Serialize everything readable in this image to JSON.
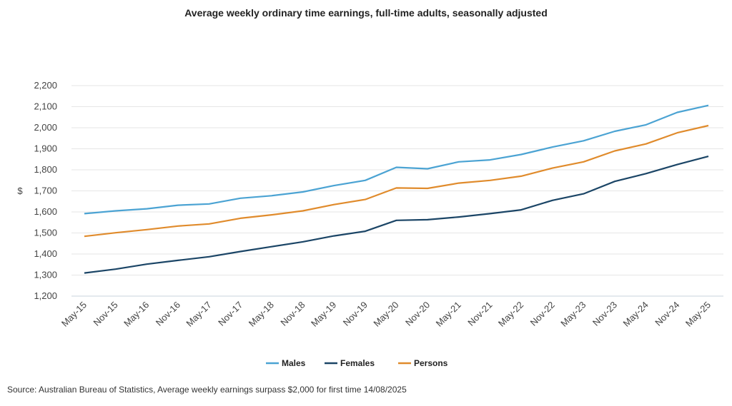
{
  "chart_data": {
    "type": "line",
    "title": "Average weekly ordinary time earnings, full-time adults, seasonally adjusted",
    "xlabel": "",
    "ylabel": "$",
    "ylim": [
      1200,
      2200
    ],
    "yticks": [
      "1,200",
      "1,300",
      "1,400",
      "1,500",
      "1,600",
      "1,700",
      "1,800",
      "1,900",
      "2,000",
      "2,100",
      "2,200"
    ],
    "grid": true,
    "legend": "bottom",
    "categories": [
      "May-15",
      "Nov-15",
      "May-16",
      "Nov-16",
      "May-17",
      "Nov-17",
      "May-18",
      "Nov-18",
      "May-19",
      "Nov-19",
      "May-20",
      "Nov-20",
      "May-21",
      "Nov-21",
      "May-22",
      "Nov-22",
      "May-23",
      "Nov-23",
      "May-24",
      "Nov-24",
      "May-25"
    ],
    "series": [
      {
        "name": "Males",
        "color": "#4ba3d3",
        "values": [
          1592,
          1605,
          1615,
          1632,
          1638,
          1665,
          1677,
          1695,
          1725,
          1750,
          1812,
          1805,
          1838,
          1847,
          1873,
          1908,
          1938,
          1983,
          2014,
          2073,
          2106
        ]
      },
      {
        "name": "Females",
        "color": "#1b4566",
        "values": [
          1310,
          1328,
          1352,
          1370,
          1387,
          1412,
          1435,
          1458,
          1486,
          1508,
          1560,
          1563,
          1576,
          1592,
          1610,
          1655,
          1686,
          1745,
          1782,
          1825,
          1864
        ]
      },
      {
        "name": "Persons",
        "color": "#e08b2c",
        "values": [
          1484,
          1501,
          1516,
          1533,
          1543,
          1570,
          1586,
          1605,
          1635,
          1659,
          1714,
          1712,
          1737,
          1750,
          1770,
          1808,
          1838,
          1890,
          1923,
          1976,
          2010
        ]
      }
    ]
  },
  "source": "Source: Australian Bureau of Statistics, Average weekly earnings surpass $2,000 for first time 14/08/2025"
}
